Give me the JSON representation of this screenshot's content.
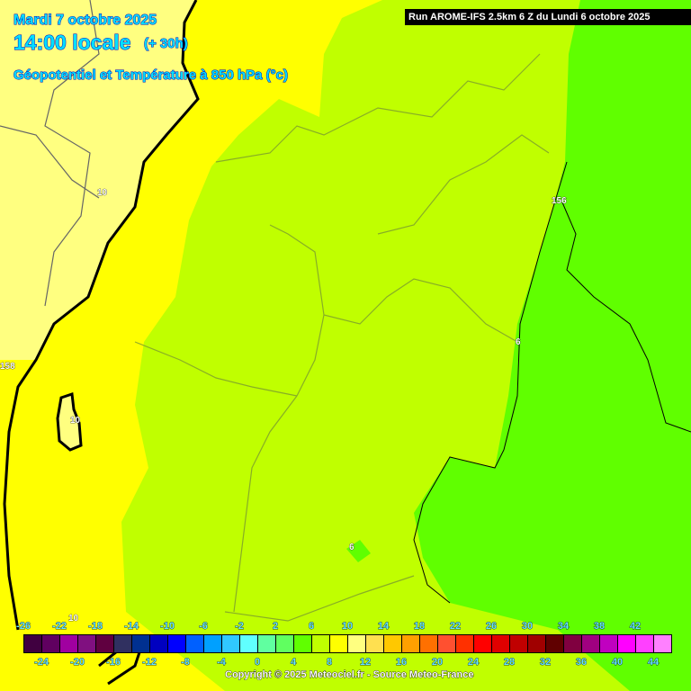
{
  "header": {
    "date": "Mardi 7 octobre 2025",
    "time": "14:00 locale",
    "offset": "(+ 30h)",
    "parameter": "Géopotentiel et Température à 850 hPa (°c)",
    "run": "Run AROME-IFS 2.5km 6 Z du Lundi 6 octobre 2025"
  },
  "map_labels": [
    "10",
    "156",
    "6",
    "158",
    "10",
    "6",
    "10"
  ],
  "map_colors": {
    "pale_yellow": "#ffff80",
    "yellow": "#ffff00",
    "yellow_green": "#c0ff00",
    "green": "#60ff00"
  },
  "colorbar": {
    "top_labels": [
      "-26",
      "-22",
      "-18",
      "-14",
      "-10",
      "-6",
      "-2",
      "2",
      "6",
      "10",
      "14",
      "18",
      "22",
      "26",
      "30",
      "34",
      "38",
      "42"
    ],
    "bottom_labels": [
      "-24",
      "-20",
      "-16",
      "-12",
      "-8",
      "-4",
      "0",
      "4",
      "8",
      "12",
      "16",
      "20",
      "24",
      "28",
      "32",
      "36",
      "40",
      "44"
    ],
    "colors": [
      "#400040",
      "#600060",
      "#a000a0",
      "#801080",
      "#600040",
      "#303060",
      "#003090",
      "#0000c0",
      "#0000ff",
      "#0060ff",
      "#00a0ff",
      "#30c8ff",
      "#60ffff",
      "#60ffa0",
      "#60ff60",
      "#60ff00",
      "#c0ff00",
      "#ffff00",
      "#ffff80",
      "#ffe050",
      "#ffc800",
      "#ffa000",
      "#ff7000",
      "#ff5030",
      "#ff3000",
      "#ff0000",
      "#e00000",
      "#c00000",
      "#a00000",
      "#600000",
      "#800040",
      "#a00080",
      "#c000c0",
      "#ff00ff",
      "#ff40ff",
      "#ff80ff"
    ]
  },
  "copyright": "Copyright © 2025 Meteociel.fr - Source Meteo-France"
}
